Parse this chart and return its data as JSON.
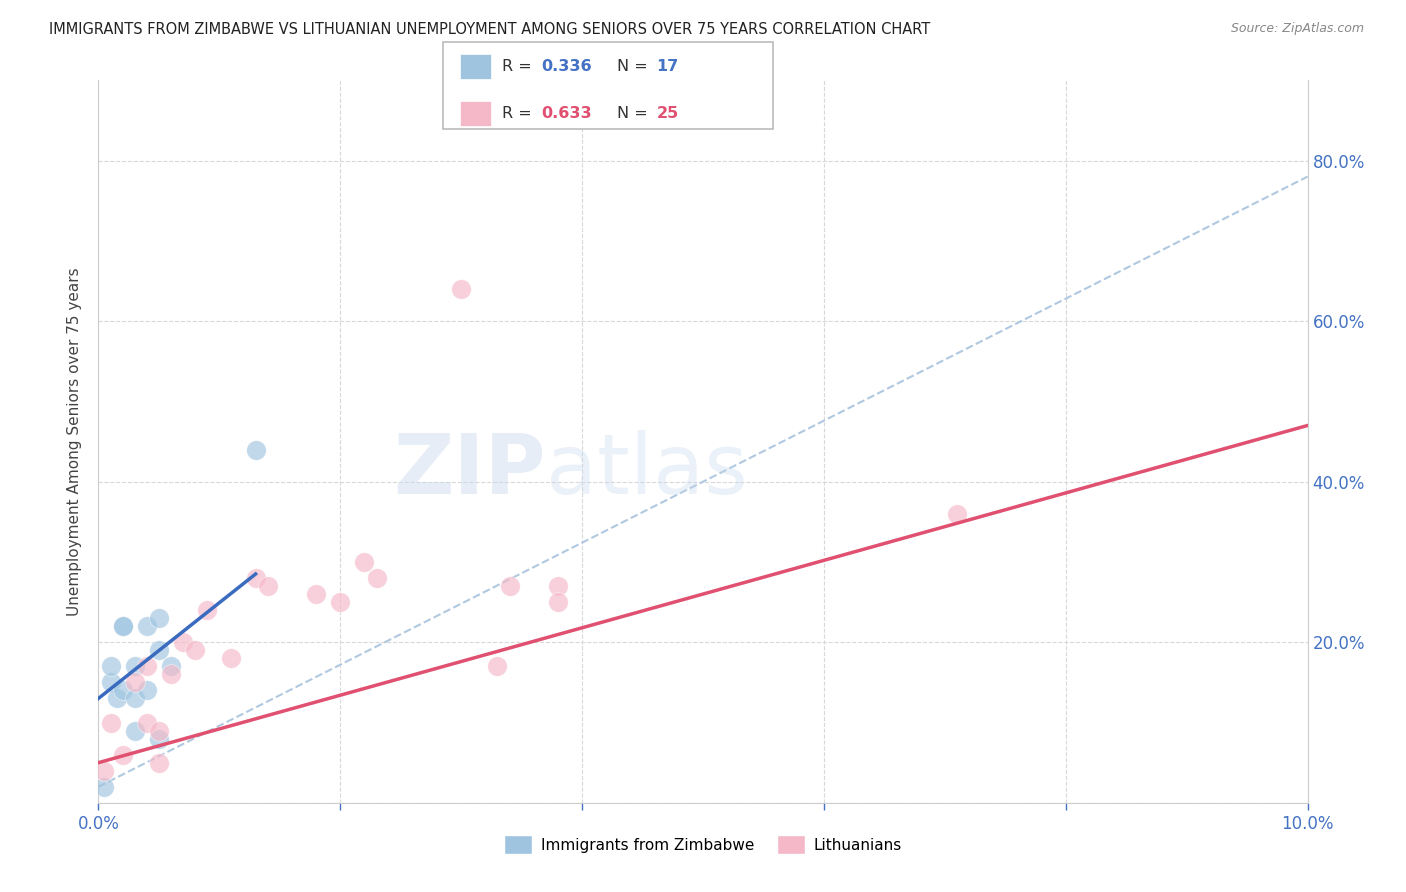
{
  "title": "IMMIGRANTS FROM ZIMBABWE VS LITHUANIAN UNEMPLOYMENT AMONG SENIORS OVER 75 YEARS CORRELATION CHART",
  "source": "Source: ZipAtlas.com",
  "ylabel": "Unemployment Among Seniors over 75 years",
  "legend_blue_label": "Immigrants from Zimbabwe",
  "legend_pink_label": "Lithuanians",
  "xlim": [
    0.0,
    0.1
  ],
  "ylim": [
    0.0,
    0.9
  ],
  "x_ticks": [
    0.0,
    0.02,
    0.04,
    0.06,
    0.08,
    0.1
  ],
  "y_ticks": [
    0.0,
    0.2,
    0.4,
    0.6,
    0.8
  ],
  "x_tick_labels": [
    "0.0%",
    "",
    "",
    "",
    "",
    "10.0%"
  ],
  "y_tick_labels": [
    "",
    "20.0%",
    "40.0%",
    "60.0%",
    "80.0%"
  ],
  "watermark": "ZIPatlas",
  "blue_scatter_x": [
    0.0005,
    0.001,
    0.001,
    0.0015,
    0.002,
    0.002,
    0.002,
    0.003,
    0.003,
    0.003,
    0.004,
    0.004,
    0.005,
    0.005,
    0.005,
    0.006,
    0.013
  ],
  "blue_scatter_y": [
    0.02,
    0.15,
    0.17,
    0.13,
    0.14,
    0.22,
    0.22,
    0.09,
    0.13,
    0.17,
    0.14,
    0.22,
    0.08,
    0.19,
    0.23,
    0.17,
    0.44
  ],
  "pink_scatter_x": [
    0.0005,
    0.001,
    0.002,
    0.003,
    0.004,
    0.004,
    0.005,
    0.005,
    0.006,
    0.007,
    0.008,
    0.009,
    0.011,
    0.013,
    0.014,
    0.018,
    0.02,
    0.022,
    0.023,
    0.03,
    0.033,
    0.034,
    0.038,
    0.038,
    0.071
  ],
  "pink_scatter_y": [
    0.04,
    0.1,
    0.06,
    0.15,
    0.17,
    0.1,
    0.09,
    0.05,
    0.16,
    0.2,
    0.19,
    0.24,
    0.18,
    0.28,
    0.27,
    0.26,
    0.25,
    0.3,
    0.28,
    0.64,
    0.17,
    0.27,
    0.27,
    0.25,
    0.36
  ],
  "blue_line_x": [
    0.0,
    0.013
  ],
  "blue_line_y": [
    0.13,
    0.285
  ],
  "pink_line_x": [
    0.0,
    0.1
  ],
  "pink_line_y": [
    0.05,
    0.47
  ],
  "dashed_line_x": [
    0.0,
    0.1
  ],
  "dashed_line_y": [
    0.02,
    0.78
  ],
  "background_color": "#ffffff",
  "blue_color": "#9ec4e0",
  "pink_color": "#f5b8c8",
  "blue_line_color": "#3a6bbf",
  "pink_line_color": "#e05070",
  "dashed_line_color": "#b0c8e0",
  "grid_color": "#d8d8d8",
  "title_color": "#222222",
  "axis_color": "#4472c4",
  "legend_r_blue": "0.336",
  "legend_n_blue": "17",
  "legend_r_pink": "0.633",
  "legend_n_pink": "25"
}
